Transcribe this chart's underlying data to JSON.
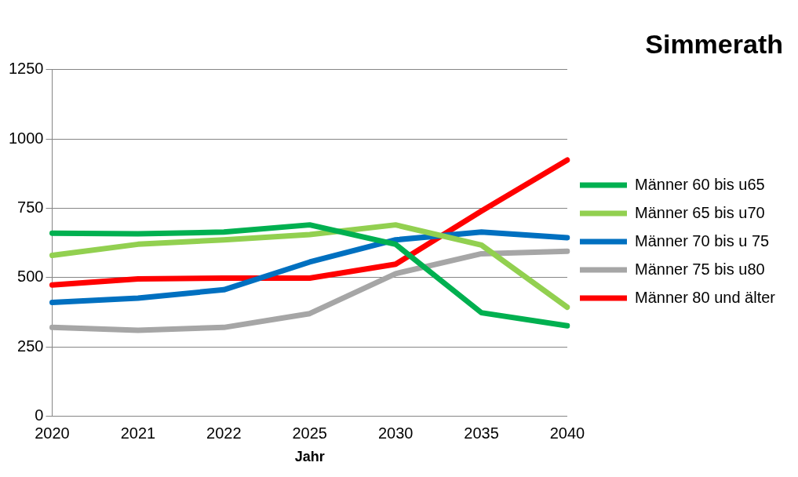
{
  "chart_data": {
    "type": "line",
    "title": "Simmerath",
    "xlabel": "Jahr",
    "categories": [
      "2020",
      "2021",
      "2022",
      "2025",
      "2030",
      "2035",
      "2040"
    ],
    "series": [
      {
        "name": "Männer 60 bis u65",
        "color": "#00b050",
        "values": [
          660,
          658,
          664,
          690,
          620,
          373,
          326
        ]
      },
      {
        "name": "Männer 65 bis u70",
        "color": "#92d050",
        "values": [
          580,
          620,
          636,
          655,
          690,
          617,
          393
        ]
      },
      {
        "name": "Männer 70 bis u 75",
        "color": "#0070c0",
        "values": [
          410,
          426,
          456,
          556,
          636,
          664,
          644
        ]
      },
      {
        "name": "Männer 75 bis u80",
        "color": "#a6a6a6",
        "values": [
          320,
          310,
          320,
          370,
          514,
          586,
          595
        ]
      },
      {
        "name": "Männer 80 und älter",
        "color": "#ff0000",
        "values": [
          473,
          495,
          498,
          498,
          548,
          740,
          924
        ]
      }
    ],
    "ylim": [
      0,
      1250
    ],
    "yticks": [
      0,
      250,
      500,
      750,
      1000,
      1250
    ],
    "grid": "y",
    "legend": "right",
    "marker": "none",
    "line_style": "solid"
  }
}
